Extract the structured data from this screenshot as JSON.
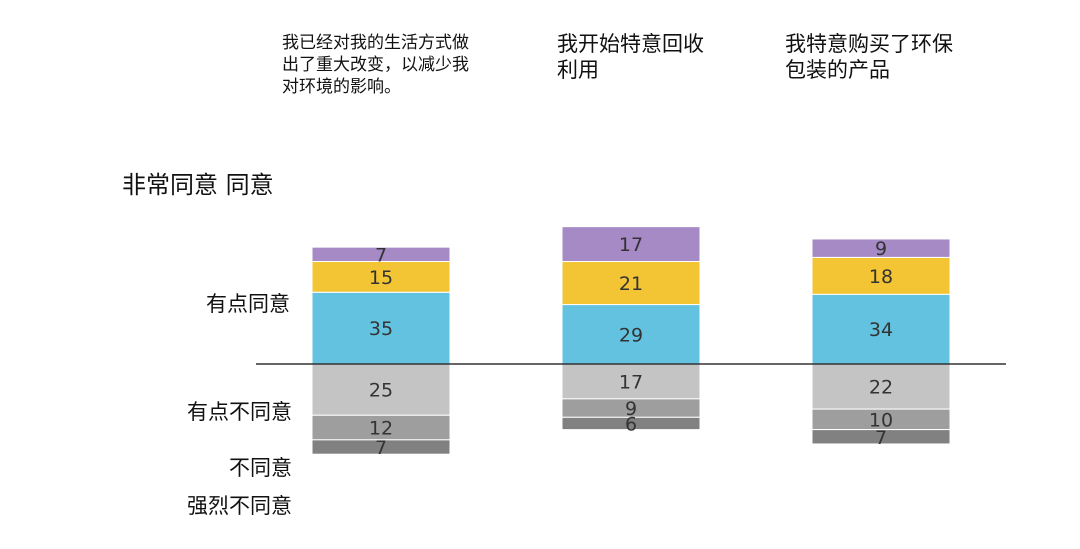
{
  "chart_data": {
    "type": "bar",
    "categories": [
      "我已经对我的生活方式做出了重大改变，以减少我对环境的影响。",
      "我开始特意回收利用",
      "我特意购买了环保包装的产品"
    ],
    "series": [
      {
        "name": "非常同意 同意",
        "values": [
          7,
          17,
          9
        ],
        "color": "#a58ac6"
      },
      {
        "name": "同意",
        "values": [
          15,
          21,
          18
        ],
        "color": "#f3c535"
      },
      {
        "name": "有点同意",
        "values": [
          35,
          29,
          34
        ],
        "color": "#63c2df"
      },
      {
        "name": "有点不同意",
        "values": [
          25,
          17,
          22
        ],
        "color": "#c4c4c4"
      },
      {
        "name": "不同意",
        "values": [
          12,
          9,
          10
        ],
        "color": "#9e9e9e"
      },
      {
        "name": "强烈不同意",
        "values": [
          7,
          6,
          7
        ],
        "color": "#818181"
      }
    ],
    "row_labels": {
      "strongly_agree": "非常同意 同意",
      "somewhat_agree": "有点同意",
      "somewhat_disagree": "有点不同意",
      "disagree": "不同意",
      "strongly_disagree": "强烈不同意"
    },
    "baseline": 0
  }
}
